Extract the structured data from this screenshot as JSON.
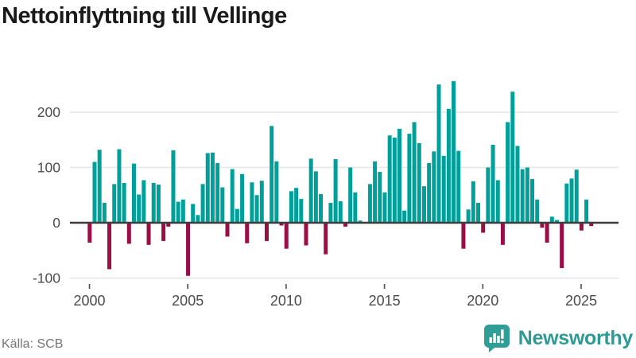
{
  "header": {
    "title": "Nettoinflyttning till Vellinge"
  },
  "footer": {
    "source": "Källa: SCB",
    "brand": "Newsworthy"
  },
  "colors": {
    "positive_bar": "#00a09a",
    "negative_bar": "#9a0e46",
    "gridline": "#e6e6e6",
    "zero_line": "#3d3d3d",
    "axis_text": "#4b4b4b",
    "tick_mark": "#4b4b4b",
    "brand_teal": "#2f9e96",
    "title_text": "#1a1a1a",
    "source_text": "#757575"
  },
  "chart_data": {
    "type": "bar",
    "title": "Nettoinflyttning till Vellinge",
    "xlabel": "",
    "ylabel": "",
    "source": "SCB",
    "x_unit": "quarter",
    "start": "2000 Q1",
    "end": "2025 Q3",
    "grid": "horizontal",
    "legend": "none",
    "ylim": [
      -110,
      270
    ],
    "y_ticks": [
      200,
      100,
      0,
      -100
    ],
    "y_tick_labels": [
      "200",
      "100",
      "0",
      "-100"
    ],
    "x_ticks": [
      2000,
      2005,
      2010,
      2015,
      2020,
      2025
    ],
    "x_tick_labels": [
      "2000",
      "2005",
      "2010",
      "2015",
      "2020",
      "2025"
    ],
    "categories": [
      "2000 Q1",
      "2000 Q2",
      "2000 Q3",
      "2000 Q4",
      "2001 Q1",
      "2001 Q2",
      "2001 Q3",
      "2001 Q4",
      "2002 Q1",
      "2002 Q2",
      "2002 Q3",
      "2002 Q4",
      "2003 Q1",
      "2003 Q2",
      "2003 Q3",
      "2003 Q4",
      "2004 Q1",
      "2004 Q2",
      "2004 Q3",
      "2004 Q4",
      "2005 Q1",
      "2005 Q2",
      "2005 Q3",
      "2005 Q4",
      "2006 Q1",
      "2006 Q2",
      "2006 Q3",
      "2006 Q4",
      "2007 Q1",
      "2007 Q2",
      "2007 Q3",
      "2007 Q4",
      "2008 Q1",
      "2008 Q2",
      "2008 Q3",
      "2008 Q4",
      "2009 Q1",
      "2009 Q2",
      "2009 Q3",
      "2009 Q4",
      "2010 Q1",
      "2010 Q2",
      "2010 Q3",
      "2010 Q4",
      "2011 Q1",
      "2011 Q2",
      "2011 Q3",
      "2011 Q4",
      "2012 Q1",
      "2012 Q2",
      "2012 Q3",
      "2012 Q4",
      "2013 Q1",
      "2013 Q2",
      "2013 Q3",
      "2013 Q4",
      "2014 Q1",
      "2014 Q2",
      "2014 Q3",
      "2014 Q4",
      "2015 Q1",
      "2015 Q2",
      "2015 Q3",
      "2015 Q4",
      "2016 Q1",
      "2016 Q2",
      "2016 Q3",
      "2016 Q4",
      "2017 Q1",
      "2017 Q2",
      "2017 Q3",
      "2017 Q4",
      "2018 Q1",
      "2018 Q2",
      "2018 Q3",
      "2018 Q4",
      "2019 Q1",
      "2019 Q2",
      "2019 Q3",
      "2019 Q4",
      "2020 Q1",
      "2020 Q2",
      "2020 Q3",
      "2020 Q4",
      "2021 Q1",
      "2021 Q2",
      "2021 Q3",
      "2021 Q4",
      "2022 Q1",
      "2022 Q2",
      "2022 Q3",
      "2022 Q4",
      "2023 Q1",
      "2023 Q2",
      "2023 Q3",
      "2023 Q4",
      "2024 Q1",
      "2024 Q2",
      "2024 Q3",
      "2024 Q4",
      "2025 Q1",
      "2025 Q2",
      "2025 Q3"
    ],
    "values": [
      -36,
      110,
      132,
      36,
      -84,
      70,
      133,
      72,
      -38,
      107,
      51,
      77,
      -40,
      72,
      69,
      -33,
      -7,
      131,
      38,
      42,
      -96,
      34,
      14,
      70,
      126,
      127,
      108,
      64,
      -25,
      97,
      25,
      88,
      -37,
      73,
      50,
      76,
      -33,
      175,
      111,
      -5,
      -47,
      57,
      63,
      43,
      -41,
      116,
      93,
      52,
      -57,
      36,
      115,
      39,
      -7,
      100,
      55,
      4,
      0,
      70,
      111,
      92,
      55,
      158,
      154,
      170,
      22,
      161,
      182,
      144,
      66,
      108,
      129,
      250,
      121,
      206,
      256,
      130,
      -47,
      24,
      75,
      36,
      -18,
      100,
      141,
      77,
      -40,
      182,
      237,
      139,
      97,
      100,
      79,
      42,
      -9,
      -36,
      11,
      5,
      -82,
      71,
      80,
      96,
      -14,
      42,
      -6
    ]
  }
}
